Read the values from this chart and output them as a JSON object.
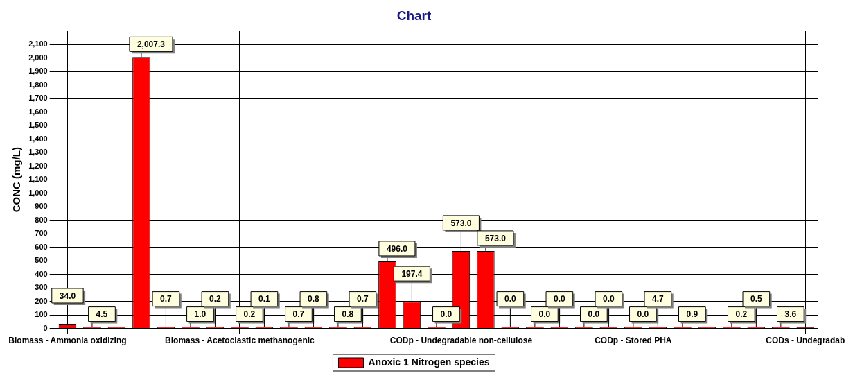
{
  "chart_data": {
    "type": "bar",
    "title": "Chart",
    "ylabel": "CONC (mg/L)",
    "categories": [
      "Biomass - Ammonia oxidizing",
      null,
      null,
      null,
      null,
      null,
      null,
      "Biomass - Acetoclastic methanogenic",
      null,
      null,
      null,
      null,
      null,
      null,
      null,
      null,
      "CODp - Undegradable non-cellulose",
      null,
      null,
      null,
      null,
      null,
      null,
      "CODp - Stored PHA",
      null,
      null,
      null,
      null,
      null,
      null,
      "CODs - Undegradab"
    ],
    "series": [
      {
        "name": "Anoxic 1 Nitrogen species",
        "color": "#ff0000",
        "colors": [
          "#ff0000",
          "#ff0000",
          "#ff0000",
          "#ff0000",
          "#ff0000",
          "#ff0000",
          "#ff0000",
          "#ff0000",
          "#ff0000",
          "#ff0000",
          "#ff0000",
          "#ff0000",
          "#ff0000",
          "#ff0000",
          "#ff0000",
          "#ff0000",
          "#ff0000",
          "#ff0000",
          "#ff0000",
          "#ff0000",
          "#ff0000",
          "#ff0000",
          "#ff0000",
          "#ff0000",
          "#ff0000",
          "#ff0000",
          "#ff0000",
          "#ff0000",
          "#ff0000",
          "#ff0000",
          "#800000"
        ],
        "values": [
          34.0,
          4.5,
          0,
          2007.3,
          0.7,
          1.0,
          0.2,
          0.2,
          0.1,
          0.7,
          0.8,
          0.8,
          0.7,
          496.0,
          197.4,
          0.0,
          573.0,
          573.0,
          0.0,
          0.0,
          0.0,
          0.0,
          0.0,
          0.0,
          4.7,
          0.9,
          0,
          0.2,
          0.5,
          3.6,
          10
        ],
        "value_labels": [
          "34.0",
          "4.5",
          null,
          "2,007.3",
          "0.7",
          "1.0",
          "0.2",
          "0.2",
          "0.1",
          "0.7",
          "0.8",
          "0.8",
          "0.7",
          "496.0",
          "197.4",
          "0.0",
          "573.0",
          "573.0",
          "0.0",
          "0.0",
          "0.0",
          "0.0",
          "0.0",
          "0.0",
          "4.7",
          "0.9",
          null,
          "0.2",
          "0.5",
          "3.6",
          null
        ]
      }
    ],
    "ylim": [
      0,
      2200
    ],
    "yticks": [
      0,
      100,
      200,
      300,
      400,
      500,
      600,
      700,
      800,
      900,
      {
        "value": 1000,
        "label": "1,000"
      },
      {
        "value": 1100,
        "label": "1,100"
      },
      {
        "value": 1200,
        "label": "1,200"
      },
      {
        "value": 1300,
        "label": "1,300"
      },
      {
        "value": 1400,
        "label": "1,400"
      },
      {
        "value": 1500,
        "label": "1,500"
      },
      {
        "value": 1600,
        "label": "1,600"
      },
      {
        "value": 1700,
        "label": "1,700"
      },
      {
        "value": 1800,
        "label": "1,800"
      },
      {
        "value": 1900,
        "label": "1,900"
      },
      {
        "value": 2000,
        "label": "2,000"
      },
      {
        "value": 2100,
        "label": "2,100"
      }
    ],
    "grid": true,
    "legend": "bottom"
  }
}
